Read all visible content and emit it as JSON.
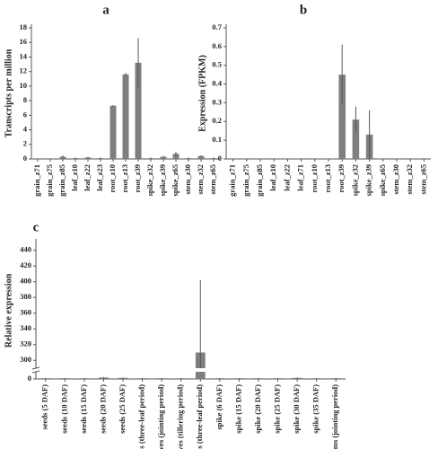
{
  "chart_data": [
    {
      "type": "bar",
      "title": "a",
      "y_label": "Transcripts per million",
      "categories": [
        "grain_z71",
        "grain_z75",
        "grain_z85",
        "leaf_z10",
        "leaf_z22",
        "leaf_z23",
        "root_z10",
        "root_z13",
        "root_z39",
        "spike_z32",
        "spike_z39",
        "spike_z65",
        "stem_z30",
        "stem_z32",
        "stem_z65"
      ],
      "values": [
        0,
        0,
        0.3,
        0.1,
        0.2,
        0.1,
        7.3,
        11.6,
        13.2,
        0.1,
        0.3,
        0.7,
        0.1,
        0.4,
        0.1
      ],
      "errors": [
        0,
        0,
        0.2,
        0.1,
        0.1,
        0.1,
        0.1,
        0.2,
        3.4,
        0.1,
        0.1,
        0.3,
        0.1,
        0.1,
        0.1
      ],
      "color": "#7f7f7f",
      "ylim": [
        0,
        18
      ],
      "yticks": [
        0,
        2,
        4,
        6,
        8,
        10,
        12,
        14,
        16,
        18
      ]
    },
    {
      "type": "bar",
      "title": "b",
      "y_label": "Expression (FPKM)",
      "categories": [
        "grain_z71",
        "grain_z75",
        "grain_z85",
        "leaf_z10",
        "leaf_z22",
        "leaf_z71",
        "root_z10",
        "root_z13",
        "root_z39",
        "spike_z32",
        "spike_z39",
        "spike_z65",
        "stem_z30",
        "stem_z32",
        "stem_z65"
      ],
      "values": [
        0,
        0,
        0,
        0,
        0,
        0,
        0,
        0,
        0.45,
        0.21,
        0.13,
        0,
        0,
        0,
        0
      ],
      "errors": [
        0,
        0,
        0,
        0,
        0,
        0,
        0,
        0,
        0.16,
        0.07,
        0.13,
        0,
        0,
        0,
        0
      ],
      "color": "#7f7f7f",
      "ylim": [
        0,
        0.7
      ],
      "yticks": [
        0,
        0.1,
        0.2,
        0.3,
        0.4,
        0.5,
        0.6,
        0.7
      ]
    },
    {
      "type": "bar",
      "title": "c",
      "y_label": "Relative expression",
      "categories": [
        "seeds (5 DAF)",
        "seeds (10 DAF)",
        "seeds (15 DAF)",
        "seeds (20 DAF)",
        "seeds (25 DAF)",
        "leaves (three-leaf period)",
        "leaves (jointing period)",
        "leaves (tillering period)",
        "roots (three-leaf period)",
        "spike (6 DAF)",
        "spike (15 DAF)",
        "spike (20 DAF)",
        "spike (25 DAF)",
        "spike (30 DAF)",
        "spike (35 DAF)",
        "stems (jointing period)"
      ],
      "values": [
        1,
        1,
        1,
        2,
        1.5,
        1,
        1,
        1,
        310,
        1,
        1,
        1,
        1,
        1.5,
        1,
        1
      ],
      "errors": [
        0.3,
        0.3,
        0.3,
        0.8,
        0.6,
        0.3,
        0.3,
        0.3,
        92,
        0.3,
        0.3,
        0.3,
        0.3,
        0.6,
        0.3,
        0.3
      ],
      "color": "#7f7f7f",
      "ylim": [
        0,
        450
      ],
      "axis_break": [
        10,
        290
      ],
      "yticks": [
        0,
        300,
        320,
        340,
        360,
        380,
        400,
        420,
        440
      ]
    }
  ]
}
